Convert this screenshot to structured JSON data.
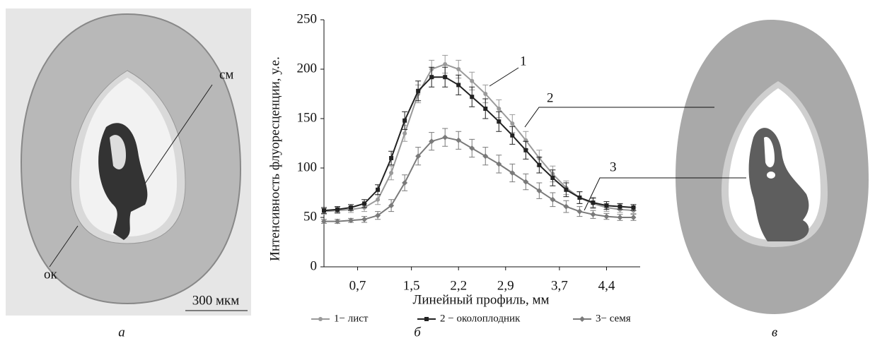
{
  "chart_data": {
    "type": "line",
    "y_label": "Интенсивность флуоресценции, у.е.",
    "x_label": "Линейный профиль, мм",
    "x": [
      0.2,
      0.4,
      0.6,
      0.8,
      1.0,
      1.2,
      1.4,
      1.6,
      1.8,
      2.0,
      2.2,
      2.4,
      2.6,
      2.8,
      3.0,
      3.2,
      3.4,
      3.6,
      3.8,
      4.0,
      4.2,
      4.4,
      4.6,
      4.8
    ],
    "series": [
      {
        "name": "1− лист",
        "color": "#9a9a9a",
        "marker": "circle",
        "values": [
          56,
          57,
          58,
          60,
          68,
          95,
          135,
          175,
          200,
          205,
          200,
          188,
          175,
          160,
          145,
          128,
          110,
          94,
          80,
          70,
          64,
          60,
          58,
          57
        ],
        "errors": [
          3,
          3,
          3,
          4,
          5,
          7,
          8,
          9,
          9,
          9,
          9,
          9,
          9,
          9,
          9,
          9,
          8,
          8,
          7,
          6,
          5,
          4,
          3,
          3
        ]
      },
      {
        "name": "2 − околоплодник",
        "color": "#222222",
        "marker": "square",
        "values": [
          57,
          58,
          60,
          64,
          78,
          110,
          148,
          178,
          192,
          192,
          184,
          172,
          160,
          147,
          133,
          118,
          103,
          90,
          78,
          70,
          65,
          62,
          61,
          60
        ],
        "errors": [
          3,
          3,
          3,
          4,
          5,
          7,
          9,
          10,
          10,
          10,
          10,
          10,
          10,
          10,
          9,
          9,
          8,
          8,
          7,
          6,
          5,
          4,
          3,
          3
        ]
      },
      {
        "name": "3− семя",
        "color": "#7a7a7a",
        "marker": "diamond",
        "values": [
          46,
          46,
          47,
          48,
          52,
          62,
          85,
          112,
          127,
          131,
          128,
          120,
          112,
          104,
          95,
          86,
          77,
          68,
          61,
          56,
          53,
          51,
          50,
          50
        ],
        "errors": [
          2,
          2,
          2,
          3,
          4,
          6,
          8,
          9,
          9,
          9,
          9,
          9,
          9,
          9,
          9,
          8,
          8,
          7,
          6,
          5,
          4,
          3,
          3,
          3
        ]
      }
    ],
    "xlim": [
      0.2,
      4.9
    ],
    "ylim": [
      0,
      250
    ],
    "xticks": [
      {
        "value": 0.7,
        "label": "0,7"
      },
      {
        "value": 1.5,
        "label": "1,5"
      },
      {
        "value": 2.2,
        "label": "2,2"
      },
      {
        "value": 2.9,
        "label": "2,9"
      },
      {
        "value": 3.7,
        "label": "3,7"
      },
      {
        "value": 4.4,
        "label": "4,4"
      }
    ],
    "yticks": [
      0,
      50,
      100,
      150,
      200,
      250
    ],
    "annotations": [
      "1",
      "2",
      "3"
    ]
  },
  "panels": {
    "left": {
      "letter": "а",
      "labels": [
        "см",
        "ок"
      ],
      "scale": "300 мкм"
    },
    "middle": {
      "letter": "б"
    },
    "right": {
      "letter": "в"
    }
  }
}
